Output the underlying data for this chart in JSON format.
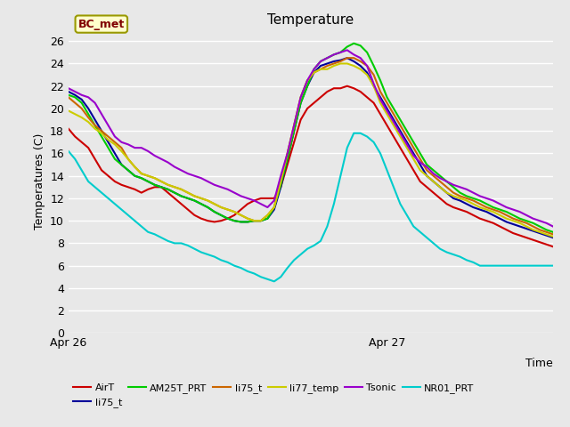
{
  "title": "Temperature",
  "ylabel": "Temperatures (C)",
  "xlabel": "Time",
  "annotation": "BC_met",
  "ylim": [
    0,
    27
  ],
  "yticks": [
    0,
    2,
    4,
    6,
    8,
    10,
    12,
    14,
    16,
    18,
    20,
    22,
    24,
    26
  ],
  "xtick_labels": [
    "Apr 26",
    "Apr 27"
  ],
  "xtick_positions": [
    0,
    48
  ],
  "n_points": 74,
  "plot_bg_color": "#e8e8e8",
  "grid_color": "#ffffff",
  "series": {
    "AirT": {
      "color": "#cc0000",
      "values": [
        18.2,
        17.5,
        17.0,
        16.5,
        15.5,
        14.5,
        14.0,
        13.5,
        13.2,
        13.0,
        12.8,
        12.5,
        12.8,
        13.0,
        13.0,
        12.5,
        12.0,
        11.5,
        11.0,
        10.5,
        10.2,
        10.0,
        9.9,
        10.0,
        10.2,
        10.5,
        11.0,
        11.5,
        11.8,
        12.0,
        12.0,
        12.0,
        13.0,
        15.0,
        17.0,
        19.0,
        20.0,
        20.5,
        21.0,
        21.5,
        21.8,
        21.8,
        22.0,
        21.8,
        21.5,
        21.0,
        20.5,
        19.5,
        18.5,
        17.5,
        16.5,
        15.5,
        14.5,
        13.5,
        13.0,
        12.5,
        12.0,
        11.5,
        11.2,
        11.0,
        10.8,
        10.5,
        10.2,
        10.0,
        9.8,
        9.5,
        9.2,
        8.9,
        8.7,
        8.5,
        8.3,
        8.1,
        7.9,
        7.7
      ]
    },
    "li75_t": {
      "color": "#000099",
      "values": [
        21.5,
        21.2,
        20.8,
        20.0,
        19.0,
        18.0,
        17.0,
        16.0,
        15.0,
        14.5,
        14.0,
        13.8,
        13.5,
        13.2,
        13.0,
        12.8,
        12.5,
        12.2,
        12.0,
        11.8,
        11.5,
        11.2,
        10.8,
        10.5,
        10.2,
        10.0,
        9.9,
        9.9,
        10.0,
        10.0,
        10.2,
        11.0,
        13.0,
        15.5,
        18.0,
        20.5,
        22.0,
        23.2,
        23.8,
        24.0,
        24.2,
        24.3,
        24.5,
        24.2,
        23.8,
        23.2,
        22.0,
        21.0,
        20.0,
        19.0,
        18.0,
        17.0,
        16.0,
        15.0,
        14.0,
        13.5,
        13.0,
        12.5,
        12.0,
        11.8,
        11.5,
        11.2,
        11.0,
        10.8,
        10.5,
        10.2,
        9.9,
        9.7,
        9.5,
        9.3,
        9.1,
        8.9,
        8.7,
        8.5
      ]
    },
    "AM25T_PRT": {
      "color": "#00cc00",
      "values": [
        21.2,
        21.0,
        20.5,
        19.5,
        18.5,
        17.5,
        16.5,
        15.5,
        15.0,
        14.5,
        14.0,
        13.8,
        13.5,
        13.2,
        13.0,
        12.8,
        12.5,
        12.2,
        12.0,
        11.8,
        11.5,
        11.2,
        10.8,
        10.5,
        10.2,
        10.0,
        9.9,
        9.9,
        10.0,
        10.0,
        10.2,
        11.2,
        13.2,
        15.5,
        18.0,
        20.5,
        22.0,
        23.5,
        24.2,
        24.5,
        24.8,
        25.0,
        25.5,
        25.8,
        25.6,
        25.0,
        23.8,
        22.5,
        21.0,
        20.0,
        19.0,
        18.0,
        17.0,
        16.0,
        15.0,
        14.5,
        14.0,
        13.5,
        13.0,
        12.5,
        12.2,
        12.0,
        11.8,
        11.5,
        11.2,
        11.0,
        10.8,
        10.5,
        10.2,
        10.0,
        9.8,
        9.5,
        9.2,
        9.0
      ]
    },
    "li75_t2": {
      "color": "#cc6600",
      "values": [
        21.0,
        20.5,
        20.0,
        19.2,
        18.5,
        18.0,
        17.5,
        17.0,
        16.5,
        15.5,
        14.8,
        14.2,
        14.0,
        13.8,
        13.5,
        13.2,
        13.0,
        12.8,
        12.5,
        12.2,
        12.0,
        11.8,
        11.5,
        11.2,
        11.0,
        10.8,
        10.5,
        10.2,
        10.0,
        10.0,
        10.5,
        11.2,
        13.5,
        16.0,
        18.5,
        21.0,
        22.5,
        23.2,
        23.5,
        23.8,
        24.0,
        24.2,
        24.5,
        24.5,
        24.2,
        23.8,
        23.0,
        21.5,
        20.5,
        19.5,
        18.5,
        17.5,
        16.5,
        15.5,
        14.5,
        14.0,
        13.5,
        13.0,
        12.5,
        12.2,
        12.0,
        11.8,
        11.5,
        11.2,
        11.0,
        10.8,
        10.5,
        10.2,
        10.0,
        9.8,
        9.5,
        9.2,
        9.0,
        8.8
      ]
    },
    "li77_temp": {
      "color": "#cccc00",
      "values": [
        19.8,
        19.5,
        19.2,
        18.8,
        18.2,
        17.8,
        17.2,
        16.8,
        16.2,
        15.5,
        14.8,
        14.2,
        14.0,
        13.8,
        13.5,
        13.2,
        13.0,
        12.8,
        12.5,
        12.2,
        12.0,
        11.8,
        11.5,
        11.2,
        11.0,
        10.8,
        10.5,
        10.2,
        10.0,
        10.0,
        10.5,
        11.2,
        13.5,
        16.0,
        18.5,
        21.0,
        22.5,
        23.2,
        23.5,
        23.5,
        23.8,
        24.0,
        24.0,
        23.8,
        23.5,
        23.0,
        22.0,
        20.5,
        19.5,
        18.5,
        17.5,
        16.5,
        15.5,
        14.5,
        14.0,
        13.5,
        13.0,
        12.5,
        12.2,
        12.0,
        11.8,
        11.5,
        11.2,
        11.0,
        10.8,
        10.5,
        10.2,
        10.0,
        9.8,
        9.5,
        9.2,
        9.0,
        8.8,
        8.6
      ]
    },
    "Tsonic": {
      "color": "#9900cc",
      "values": [
        21.8,
        21.5,
        21.2,
        21.0,
        20.5,
        19.5,
        18.5,
        17.5,
        17.0,
        16.8,
        16.5,
        16.5,
        16.2,
        15.8,
        15.5,
        15.2,
        14.8,
        14.5,
        14.2,
        14.0,
        13.8,
        13.5,
        13.2,
        13.0,
        12.8,
        12.5,
        12.2,
        12.0,
        11.8,
        11.5,
        11.2,
        11.8,
        14.0,
        16.0,
        18.5,
        21.0,
        22.5,
        23.5,
        24.2,
        24.5,
        24.8,
        25.0,
        25.2,
        24.8,
        24.5,
        23.8,
        22.2,
        20.8,
        19.8,
        18.8,
        17.8,
        16.8,
        15.8,
        15.2,
        14.8,
        14.2,
        13.8,
        13.5,
        13.2,
        13.0,
        12.8,
        12.5,
        12.2,
        12.0,
        11.8,
        11.5,
        11.2,
        11.0,
        10.8,
        10.5,
        10.2,
        10.0,
        9.8,
        9.5
      ]
    },
    "NR01_PRT": {
      "color": "#00cccc",
      "values": [
        16.2,
        15.5,
        14.5,
        13.5,
        13.0,
        12.5,
        12.0,
        11.5,
        11.0,
        10.5,
        10.0,
        9.5,
        9.0,
        8.8,
        8.5,
        8.2,
        8.0,
        8.0,
        7.8,
        7.5,
        7.2,
        7.0,
        6.8,
        6.5,
        6.3,
        6.0,
        5.8,
        5.5,
        5.3,
        5.0,
        4.8,
        4.6,
        5.0,
        5.8,
        6.5,
        7.0,
        7.5,
        7.8,
        8.2,
        9.5,
        11.5,
        14.0,
        16.5,
        17.8,
        17.8,
        17.5,
        17.0,
        16.0,
        14.5,
        13.0,
        11.5,
        10.5,
        9.5,
        9.0,
        8.5,
        8.0,
        7.5,
        7.2,
        7.0,
        6.8,
        6.5,
        6.3,
        6.0,
        6.0,
        6.0,
        6.0,
        6.0,
        6.0,
        6.0,
        6.0,
        6.0,
        6.0,
        6.0,
        6.0
      ]
    }
  },
  "legend_order": [
    "AirT",
    "li75_t",
    "AM25T_PRT",
    "li75_t2",
    "li77_temp",
    "Tsonic",
    "NR01_PRT"
  ],
  "legend_labels": [
    "AirT",
    "li75_t",
    "AM25T_PRT",
    "li75_t",
    "li77_temp",
    "Tsonic",
    "NR01_PRT"
  ]
}
